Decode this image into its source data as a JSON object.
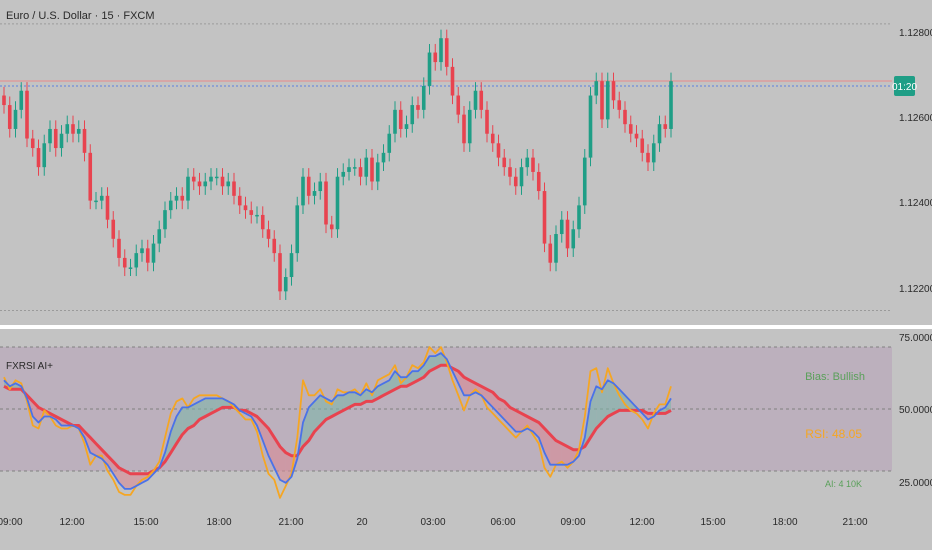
{
  "symbol_title": "Euro / U.S. Dollar · 15 · FXCM",
  "countdown_badge": "01:20",
  "price_axis_labels": [
    "1.12800",
    "1.12600",
    "1.12400",
    "1.12200"
  ],
  "indicator": {
    "name": "FXRSI AI+",
    "bias_label": "Bias: Bullish",
    "rsi_label": "RSI: 48.05",
    "signal_label": "AI: 4 10K",
    "axis_labels": [
      "75.00000",
      "50.00000",
      "25.00000"
    ]
  },
  "time_axis_labels": [
    "09:00",
    "12:00",
    "15:00",
    "18:00",
    "21:00",
    "20",
    "03:00",
    "06:00",
    "09:00",
    "12:00",
    "15:00",
    "18:00",
    "21:00"
  ],
  "colors": {
    "background": "#c3c3c3",
    "up": "#1f9e86",
    "down": "#e8434f",
    "badge": "#1f9e86",
    "rsi_fast": "#f5a623",
    "rsi_mid": "#4a72e8",
    "rsi_slow": "#e8434f",
    "bias_text": "#5aa05a",
    "rsi_text": "#f5a623"
  },
  "chart_data": [
    {
      "type": "candlestick",
      "title": "Euro / U.S. Dollar · 15 · FXCM",
      "ylim": [
        1.1218,
        1.1285
      ],
      "closes": [
        1.1263,
        1.1258,
        1.1262,
        1.1266,
        1.1256,
        1.1254,
        1.125,
        1.1255,
        1.1258,
        1.1254,
        1.1257,
        1.1259,
        1.1257,
        1.1258,
        1.1253,
        1.1243,
        1.1243,
        1.1244,
        1.1239,
        1.1235,
        1.1231,
        1.1229,
        1.1229,
        1.1232,
        1.1233,
        1.123,
        1.1234,
        1.1237,
        1.1241,
        1.1243,
        1.1244,
        1.1243,
        1.1248,
        1.1247,
        1.1246,
        1.1247,
        1.1248,
        1.1248,
        1.1246,
        1.1247,
        1.1244,
        1.1242,
        1.1241,
        1.124,
        1.124,
        1.1237,
        1.1235,
        1.1232,
        1.1224,
        1.1227,
        1.1232,
        1.1242,
        1.1248,
        1.1244,
        1.1245,
        1.1247,
        1.1238,
        1.1237,
        1.1248,
        1.1249,
        1.125,
        1.125,
        1.1248,
        1.1252,
        1.1247,
        1.1251,
        1.1253,
        1.1257,
        1.1262,
        1.1258,
        1.1259,
        1.1263,
        1.1262,
        1.1267,
        1.1274,
        1.1272,
        1.1277,
        1.1271,
        1.1265,
        1.1261,
        1.1255,
        1.1262,
        1.1266,
        1.1262,
        1.1257,
        1.1255,
        1.1252,
        1.125,
        1.1248,
        1.1246,
        1.125,
        1.1252,
        1.1249,
        1.1245,
        1.1234,
        1.123,
        1.1236,
        1.1239,
        1.1233,
        1.1237,
        1.1242,
        1.1252,
        1.1265,
        1.1268,
        1.126,
        1.1268,
        1.1264,
        1.1262,
        1.1259,
        1.1257,
        1.1256,
        1.1253,
        1.1251,
        1.1255,
        1.1259,
        1.1258,
        1.1268
      ]
    },
    {
      "type": "line",
      "title": "FXRSI AI+",
      "ylim": [
        20,
        78
      ],
      "series": [
        {
          "name": "",
          "values": [
            64,
            60,
            63,
            62,
            56,
            48,
            47,
            53,
            51,
            48,
            47,
            47,
            48,
            47,
            42,
            35,
            38,
            38,
            33,
            30,
            26,
            25,
            25,
            28,
            30,
            31,
            33,
            36,
            44,
            52,
            56,
            57,
            54,
            57,
            58,
            58,
            58,
            58,
            57,
            56,
            54,
            52,
            50,
            50,
            46,
            38,
            32,
            30,
            24,
            28,
            32,
            44,
            63,
            58,
            58,
            60,
            56,
            55,
            60,
            59,
            59,
            60,
            58,
            62,
            58,
            63,
            64,
            65,
            68,
            62,
            64,
            68,
            67,
            69,
            74,
            72,
            74,
            69,
            63,
            58,
            53,
            58,
            60,
            58,
            54,
            52,
            50,
            48,
            46,
            44,
            46,
            48,
            45,
            42,
            34,
            31,
            35,
            36,
            34,
            36,
            40,
            51,
            66,
            67,
            59,
            67,
            62,
            58,
            55,
            53,
            52,
            50,
            47,
            52,
            55,
            55,
            61
          ]
        },
        {
          "name": "",
          "values": [
            63,
            61,
            62,
            61,
            57,
            51,
            49,
            51,
            51,
            50,
            48,
            48,
            48,
            47,
            44,
            39,
            38,
            37,
            35,
            32,
            29,
            27,
            27,
            28,
            29,
            30,
            32,
            34,
            39,
            46,
            51,
            54,
            54,
            55,
            56,
            57,
            57,
            57,
            57,
            56,
            55,
            53,
            52,
            51,
            48,
            43,
            38,
            34,
            30,
            29,
            31,
            37,
            49,
            54,
            56,
            58,
            57,
            56,
            58,
            58,
            59,
            59,
            58,
            60,
            59,
            61,
            62,
            63,
            66,
            64,
            64,
            66,
            66,
            68,
            71,
            71,
            72,
            70,
            66,
            62,
            58,
            58,
            59,
            58,
            56,
            54,
            52,
            50,
            48,
            46,
            46,
            47,
            46,
            44,
            39,
            35,
            35,
            35,
            35,
            36,
            38,
            44,
            56,
            61,
            60,
            63,
            62,
            60,
            58,
            56,
            54,
            52,
            50,
            51,
            53,
            54,
            57
          ]
        },
        {
          "name": "",
          "values": [
            61,
            60,
            60,
            60,
            58,
            56,
            54,
            53,
            52,
            51,
            50,
            49,
            48,
            48,
            46,
            44,
            42,
            40,
            38,
            36,
            34,
            33,
            32,
            32,
            32,
            32,
            33,
            34,
            36,
            39,
            42,
            45,
            47,
            48,
            50,
            51,
            52,
            53,
            54,
            54,
            54,
            53,
            53,
            52,
            51,
            49,
            47,
            44,
            41,
            39,
            38,
            38,
            41,
            43,
            46,
            48,
            50,
            51,
            52,
            53,
            54,
            55,
            55,
            56,
            56,
            57,
            58,
            59,
            60,
            61,
            61,
            62,
            63,
            64,
            66,
            67,
            68,
            68,
            67,
            66,
            64,
            63,
            62,
            61,
            60,
            59,
            57,
            56,
            54,
            53,
            52,
            51,
            50,
            49,
            47,
            45,
            43,
            42,
            41,
            40,
            40,
            41,
            44,
            47,
            49,
            51,
            52,
            53,
            53,
            53,
            53,
            53,
            52,
            52,
            52,
            52,
            53
          ]
        }
      ]
    }
  ]
}
